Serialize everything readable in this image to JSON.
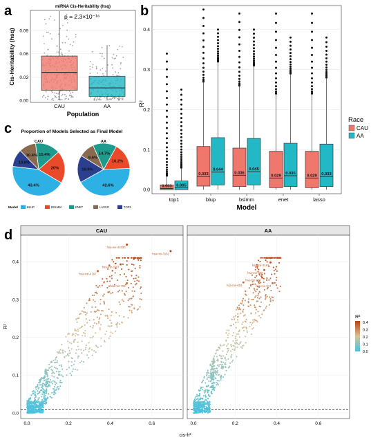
{
  "colors": {
    "cau": "#F0776B",
    "aa": "#22B8C6",
    "pie_blup": "#2DB0E3",
    "pie_bslmm": "#E94B2A",
    "pie_enet": "#1F9B8D",
    "pie_lasso": "#8A6A4E",
    "pie_top1": "#2B3F8F",
    "scatter_low": "#46C2E0",
    "scatter_mid": "#D8C39A",
    "scatter_high": "#B7410E"
  },
  "panel_a": {
    "letter": "a",
    "chart_data": {
      "type": "box",
      "title": "miRNA Cis-Heritability (hsq)",
      "annotation": "p = 2.3×10⁻¹⁶",
      "xlabel": "Population",
      "ylabel": "Cis-Heritability (hsq)",
      "categories": [
        "CAU",
        "AA"
      ],
      "ylim": [
        0,
        0.115
      ],
      "yticks": [
        "0.00",
        "0.03",
        "0.06",
        "0.09"
      ],
      "ytick_values": [
        0,
        0.03,
        0.06,
        0.09
      ],
      "boxes": [
        {
          "category": "CAU",
          "min": 0.0,
          "q1": 0.013,
          "median": 0.036,
          "q3": 0.057,
          "max": 0.115
        },
        {
          "category": "AA",
          "min": 0.0,
          "q1": 0.005,
          "median": 0.016,
          "q3": 0.031,
          "max": 0.071
        }
      ]
    }
  },
  "panel_b": {
    "letter": "b",
    "chart_data": {
      "type": "box",
      "xlabel": "Model",
      "ylabel": "R²",
      "categories": [
        "top1",
        "blup",
        "bslmm",
        "enet",
        "lasso"
      ],
      "ylim": [
        -0.01,
        0.46
      ],
      "yticks": [
        "0.0",
        "0.1",
        "0.2",
        "0.3",
        "0.4"
      ],
      "ytick_values": [
        0,
        0.1,
        0.2,
        0.3,
        0.4
      ],
      "legend": {
        "title": "Race",
        "entries": [
          "CAU",
          "AA"
        ],
        "position": "right"
      },
      "series": [
        {
          "name": "CAU",
          "boxes": [
            {
              "q1": 0.0,
              "median": 0.003,
              "q3": 0.012,
              "max": 0.035,
              "label": "0.003"
            },
            {
              "q1": 0.009,
              "median": 0.033,
              "q3": 0.108,
              "max": 0.27,
              "label": "0.033"
            },
            {
              "q1": 0.008,
              "median": 0.036,
              "q3": 0.104,
              "max": 0.26,
              "label": "0.036"
            },
            {
              "q1": 0.005,
              "median": 0.029,
              "q3": 0.096,
              "max": 0.24,
              "label": "0.029"
            },
            {
              "q1": 0.005,
              "median": 0.029,
              "q3": 0.096,
              "max": 0.24,
              "label": "0.029"
            }
          ]
        },
        {
          "name": "AA",
          "boxes": [
            {
              "q1": 0.0,
              "median": 0.005,
              "q3": 0.022,
              "max": 0.055,
              "label": "0.005"
            },
            {
              "q1": 0.012,
              "median": 0.044,
              "q3": 0.13,
              "max": 0.32,
              "label": "0.044"
            },
            {
              "q1": 0.012,
              "median": 0.045,
              "q3": 0.128,
              "max": 0.31,
              "label": "0.045"
            },
            {
              "q1": 0.008,
              "median": 0.035,
              "q3": 0.116,
              "max": 0.29,
              "label": "0.035"
            },
            {
              "q1": 0.008,
              "median": 0.033,
              "q3": 0.114,
              "max": 0.28,
              "label": "0.033"
            }
          ]
        }
      ]
    }
  },
  "panel_c": {
    "letter": "c",
    "chart_data": [
      {
        "type": "pie",
        "title": "CAU",
        "slices": [
          {
            "name": "BLUP",
            "value": 43.4,
            "label": "43.4%"
          },
          {
            "name": "BSLMM",
            "value": 20.0,
            "label": "20%"
          },
          {
            "name": "ENET",
            "value": 15.4,
            "label": "15.4%"
          },
          {
            "name": "LASSO",
            "value": 10.4,
            "label": "10.4%"
          },
          {
            "name": "TOP1",
            "value": 10.8,
            "label": "10.8%"
          }
        ]
      },
      {
        "type": "pie",
        "title": "AA",
        "slices": [
          {
            "name": "BLUP",
            "value": 42.6,
            "label": "42.6%"
          },
          {
            "name": "BSLMM",
            "value": 16.2,
            "label": "16.2%"
          },
          {
            "name": "ENET",
            "value": 14.7,
            "label": "14.7%"
          },
          {
            "name": "LASSO",
            "value": 9.6,
            "label": "9.6%"
          },
          {
            "name": "TOP1",
            "value": 16.9,
            "label": "16.9%"
          }
        ]
      }
    ],
    "title": "Proportion of Models Selected as Final Model",
    "legend_title": "Model",
    "legend_entries": [
      "BLUP",
      "BSLMM",
      "ENET",
      "LASSO",
      "TOP1"
    ]
  },
  "panel_d": {
    "letter": "d",
    "xlabel": "cis-h²",
    "ylabel": "R²",
    "xticks": [
      "0.0",
      "0.2",
      "0.4",
      "0.6"
    ],
    "xtick_values": [
      0,
      0.2,
      0.4,
      0.6
    ],
    "yticks": [
      "0.0",
      "0.1",
      "0.2",
      "0.3",
      "0.4"
    ],
    "ytick_values": [
      0,
      0.1,
      0.2,
      0.3,
      0.4
    ],
    "xlim": [
      -0.03,
      0.75
    ],
    "ylim": [
      -0.015,
      0.47
    ],
    "threshold": 0.01,
    "colorbar": {
      "title": "R²",
      "ticks": [
        "0.4",
        "0.3",
        "0.2",
        "0.1",
        "0.0"
      ],
      "tick_values": [
        0.4,
        0.3,
        0.2,
        0.1,
        0.0
      ]
    },
    "chart_data": [
      {
        "type": "scatter",
        "title": "CAU",
        "labeled_points": [
          {
            "label": "hsa-mir-4433b",
            "x": 0.48,
            "y": 0.445
          },
          {
            "label": "hsa-mir-3161",
            "x": 0.69,
            "y": 0.428
          },
          {
            "label": "hsa-mir-3907",
            "x": 0.45,
            "y": 0.393
          },
          {
            "label": "hsa-mir-4797",
            "x": 0.34,
            "y": 0.375
          },
          {
            "label": "hsa-mir-708",
            "x": 0.48,
            "y": 0.343
          }
        ]
      },
      {
        "type": "scatter",
        "title": "AA",
        "labeled_points": [
          {
            "label": "hsa-mir-3161",
            "x": 0.37,
            "y": 0.398
          },
          {
            "label": "hsa-mir-490",
            "x": 0.34,
            "y": 0.378
          },
          {
            "label": "hsa-mir-708",
            "x": 0.33,
            "y": 0.358
          },
          {
            "label": "hsa-mir-615",
            "x": 0.24,
            "y": 0.345
          },
          {
            "label": "hsa-mir-374",
            "x": 0.38,
            "y": 0.343
          }
        ]
      }
    ]
  }
}
